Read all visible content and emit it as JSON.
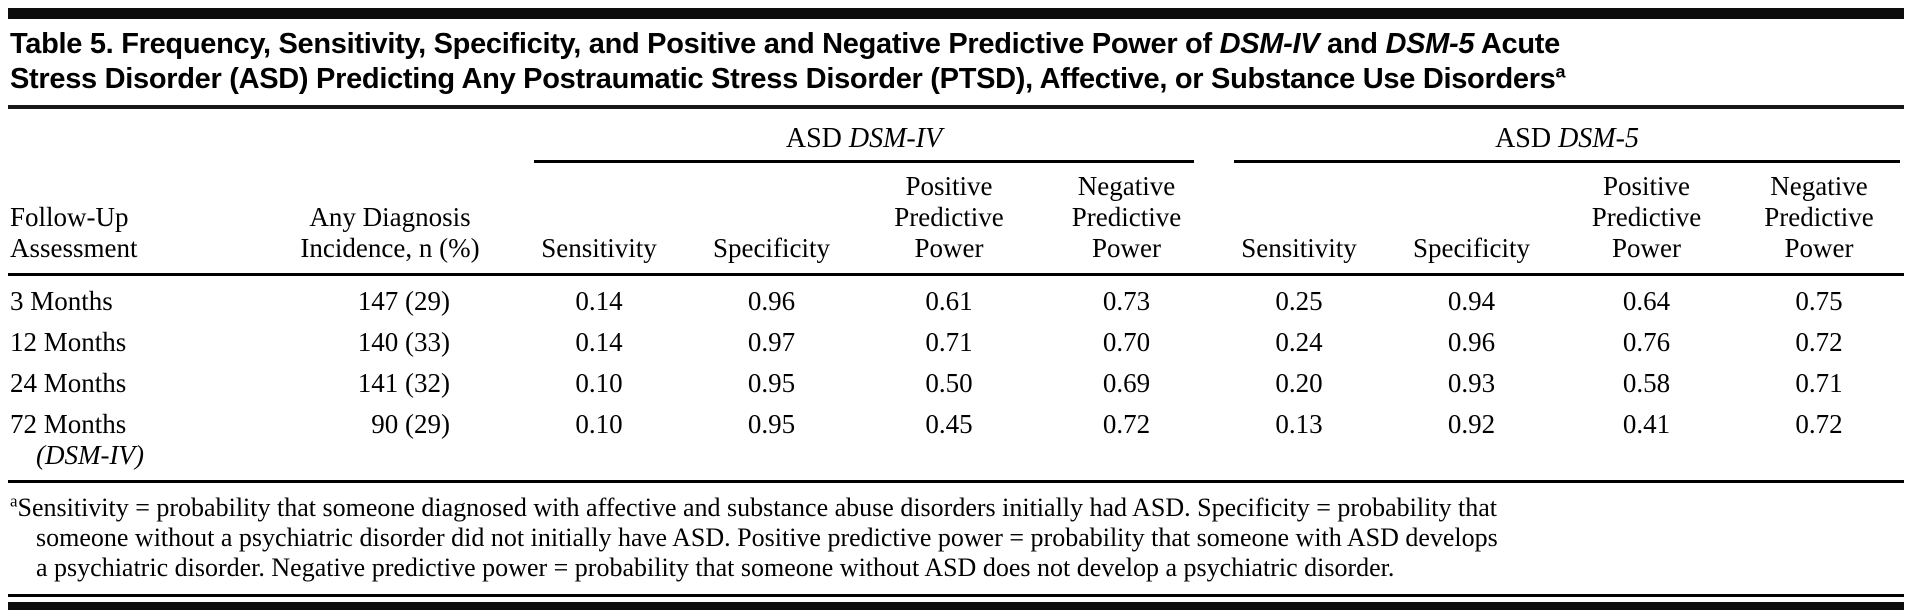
{
  "title": {
    "full_text": "Table 5. Frequency, Sensitivity, Specificity, and Positive and Negative Predictive Power of DSM-IV and DSM-5 Acute Stress Disorder (ASD) Predicting Any Postraumatic Stress Disorder (PTSD), Affective, or Substance Use Disorders",
    "segments": [
      {
        "t": "Table 5. Frequency, Sensitivity, Specificity, and Positive and Negative Predictive Power of "
      },
      {
        "t": "DSM-IV",
        "i": true
      },
      {
        "t": " and "
      },
      {
        "t": "DSM-5",
        "i": true
      },
      {
        "t": " Acute"
      },
      {
        "br": true
      },
      {
        "t": "Stress Disorder (ASD) Predicting Any Postraumatic Stress Disorder (PTSD), Affective, or Substance Use Disorders"
      },
      {
        "t": "a",
        "sup": true
      }
    ]
  },
  "table": {
    "group_headers": [
      {
        "name": "ASD DSM-IV",
        "segments": [
          {
            "t": "ASD "
          },
          {
            "t": "DSM-IV",
            "i": true
          }
        ]
      },
      {
        "name": "ASD DSM-5",
        "segments": [
          {
            "t": "ASD "
          },
          {
            "t": "DSM-5",
            "i": true
          }
        ]
      }
    ],
    "col_headers": [
      {
        "lines": [
          "Follow-Up",
          "Assessment"
        ]
      },
      {
        "lines": [
          "Any Diagnosis",
          "Incidence, n (%)"
        ]
      },
      {
        "lines": [
          "Sensitivity"
        ]
      },
      {
        "lines": [
          "Specificity"
        ]
      },
      {
        "lines": [
          "Positive",
          "Predictive",
          "Power"
        ]
      },
      {
        "lines": [
          "Negative",
          "Predictive",
          "Power"
        ]
      },
      {
        "lines": [
          "Sensitivity"
        ]
      },
      {
        "lines": [
          "Specificity"
        ]
      },
      {
        "lines": [
          "Positive",
          "Predictive",
          "Power"
        ]
      },
      {
        "lines": [
          "Negative",
          "Predictive",
          "Power"
        ]
      }
    ],
    "rows": [
      {
        "assessment": "3 Months",
        "incidence": "147 (29)",
        "values": [
          "0.14",
          "0.96",
          "0.61",
          "0.73",
          "0.25",
          "0.94",
          "0.64",
          "0.75"
        ]
      },
      {
        "assessment": "12 Months",
        "incidence": "140 (33)",
        "values": [
          "0.14",
          "0.97",
          "0.71",
          "0.70",
          "0.24",
          "0.96",
          "0.76",
          "0.72"
        ]
      },
      {
        "assessment": "24 Months",
        "incidence": "141 (32)",
        "values": [
          "0.10",
          "0.95",
          "0.50",
          "0.69",
          "0.20",
          "0.93",
          "0.58",
          "0.71"
        ]
      },
      {
        "assessment": "72 Months",
        "assessment_line2": "(DSM-IV)",
        "incidence": "90 (29)",
        "values": [
          "0.10",
          "0.95",
          "0.45",
          "0.72",
          "0.13",
          "0.92",
          "0.41",
          "0.72"
        ]
      }
    ]
  },
  "footnote": {
    "marker": "a",
    "lines": [
      "Sensitivity = probability that someone diagnosed with affective and substance abuse disorders initially had ASD. Specificity = probability that",
      "someone without a psychiatric disorder did not initially have ASD. Positive predictive power = probability that someone with ASD develops",
      "a psychiatric disorder. Negative predictive power = probability that someone without ASD does not develop a psychiatric disorder."
    ]
  }
}
